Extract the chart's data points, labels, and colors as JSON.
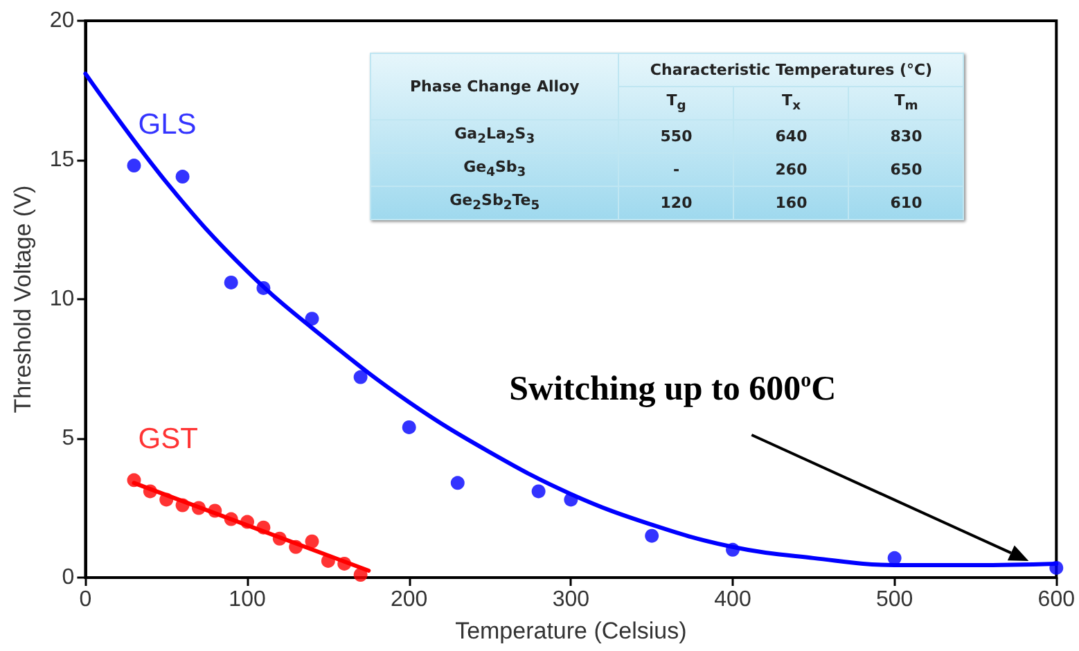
{
  "chart_data": {
    "type": "scatter",
    "xlabel": "Temperature (Celsius)",
    "ylabel": "Threshold Voltage (V)",
    "xlim": [
      0,
      600
    ],
    "xticks": [
      0,
      100,
      200,
      300,
      400,
      500,
      600
    ],
    "ylim": [
      0,
      20
    ],
    "yticks": [
      0,
      5,
      10,
      15,
      20
    ],
    "grid": false,
    "legend": false,
    "marker": "circle",
    "series": [
      {
        "name": "GLS",
        "color": "#0000ff",
        "x": [
          30,
          60,
          90,
          110,
          140,
          170,
          200,
          230,
          280,
          300,
          350,
          400,
          500,
          600
        ],
        "values": [
          14.8,
          14.4,
          10.6,
          10.4,
          9.3,
          7.2,
          5.4,
          3.4,
          3.1,
          2.8,
          1.5,
          1.0,
          0.7,
          0.35
        ]
      },
      {
        "type": "line",
        "marker": "none",
        "color": "#0000ff",
        "x": [
          0,
          50,
          100,
          150,
          200,
          250,
          300,
          350,
          400,
          450,
          500,
          550,
          600
        ],
        "values": [
          18.1,
          14.2,
          11.0,
          8.5,
          6.3,
          4.5,
          3.0,
          1.9,
          1.1,
          0.7,
          0.45,
          0.45,
          0.5
        ]
      },
      {
        "name": "GST",
        "color": "#ff0000",
        "x": [
          30,
          40,
          50,
          60,
          70,
          80,
          90,
          100,
          110,
          120,
          130,
          140,
          150,
          160,
          170
        ],
        "values": [
          3.5,
          3.1,
          2.8,
          2.6,
          2.5,
          2.4,
          2.1,
          2.0,
          1.8,
          1.4,
          1.1,
          1.3,
          0.6,
          0.5,
          0.1
        ]
      },
      {
        "type": "line",
        "marker": "none",
        "color": "#ff0000",
        "x": [
          30,
          175
        ],
        "values": [
          3.4,
          0.25
        ]
      }
    ],
    "annotations": [
      "Switching up to 600$^{o}$C",
      "Phase Change Alloy",
      "Characteristic Temperatures (°C)",
      "T$_{g}$",
      "T$_{x}$",
      "T$_{m}$",
      "Ga$_{2}$La$_{2}$S$_{3}$",
      "550",
      "640",
      "830",
      "Ge$_{4}$Sb$_{3}$",
      "-",
      "260",
      "650",
      "Ge$_{2}$Sb$_{2}$Te$_{5}$",
      "120",
      "160",
      "610"
    ]
  }
}
